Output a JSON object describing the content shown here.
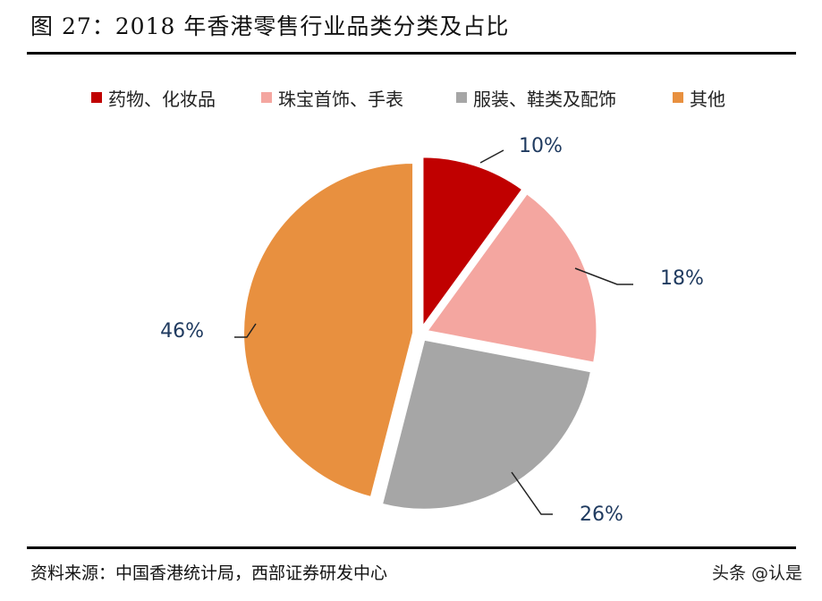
{
  "title": "图 27：2018 年香港零售行业品类分类及占比",
  "source": "资料来源：中国香港统计局，西部证券研发中心",
  "watermark": "头条 @认是",
  "chart_data": {
    "type": "pie",
    "legend_position": "top",
    "categories": [
      "药物、化妆品",
      "珠宝首饰、手表",
      "服装、鞋类及配饰",
      "其他"
    ],
    "values": [
      10,
      18,
      26,
      46
    ],
    "labels": [
      "10%",
      "18%",
      "26%",
      "46%"
    ],
    "colors": [
      "#C00000",
      "#F4A6A0",
      "#A6A6A6",
      "#E8903F"
    ]
  }
}
